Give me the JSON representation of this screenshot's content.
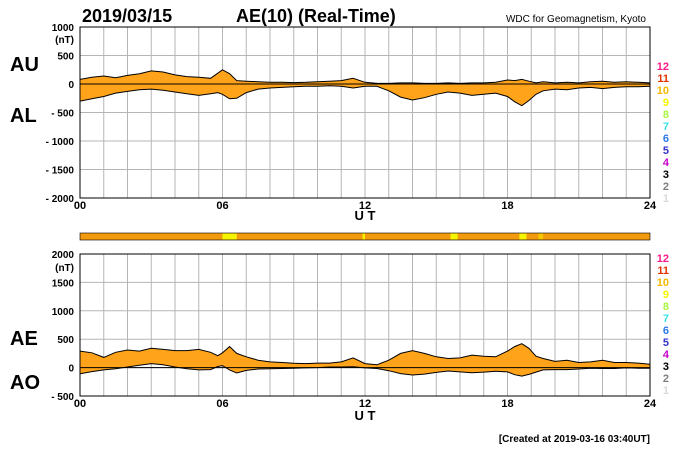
{
  "header": {
    "date": "2019/03/15",
    "title": "AE(10) (Real-Time)",
    "source": "WDC for Geomagnetism, Kyoto"
  },
  "footer": {
    "created": "[Created at 2019-03-16 03:40UT]"
  },
  "colors": {
    "fill": "#ffa31a",
    "band_base": "#f29a0e",
    "station_scale": [
      "#d9d9d9",
      "#7f7f7f",
      "#000000",
      "#cc00cc",
      "#3333cc",
      "#2c78e8",
      "#33e6e6",
      "#a8f542",
      "#f5f500",
      "#f5b800",
      "#e63300",
      "#ff1a8c"
    ]
  },
  "station_labels": [
    "1",
    "2",
    "3",
    "4",
    "5",
    "6",
    "7",
    "8",
    "9",
    "10",
    "11",
    "12"
  ],
  "chart_data": [
    {
      "type": "area",
      "panel": "top",
      "upper_label": "AU",
      "lower_label": "AL",
      "y_unit": "(nT)",
      "ylim": [
        -2000,
        1000
      ],
      "yticks": [
        1000,
        500,
        0,
        -500,
        -1000,
        -1500,
        -2000
      ],
      "ytick_labels": [
        "1000",
        "500",
        "0",
        "- 500",
        "- 1000",
        "- 1500",
        "- 2000"
      ],
      "xlim": [
        0,
        24
      ],
      "xticks": [
        0,
        6,
        12,
        18,
        24
      ],
      "xtick_labels": [
        "00",
        "06",
        "12",
        "18",
        "24"
      ],
      "xlabel": "U T",
      "grid": true,
      "x": [
        0,
        0.5,
        1,
        1.5,
        2,
        2.5,
        3,
        3.5,
        4,
        4.5,
        5,
        5.5,
        5.8,
        6,
        6.3,
        6.6,
        7,
        7.5,
        8,
        8.5,
        9,
        9.5,
        10,
        10.5,
        11,
        11.5,
        12,
        12.5,
        13,
        13.5,
        14,
        14.5,
        15,
        15.5,
        16,
        16.5,
        17,
        17.5,
        18,
        18.3,
        18.6,
        18.9,
        19.2,
        19.5,
        20,
        20.5,
        21,
        21.5,
        22,
        22.5,
        23,
        23.5,
        24
      ],
      "series": [
        {
          "name": "AU",
          "values": [
            80,
            120,
            140,
            110,
            150,
            180,
            230,
            210,
            160,
            130,
            120,
            100,
            190,
            250,
            180,
            60,
            50,
            40,
            30,
            30,
            25,
            30,
            40,
            50,
            60,
            100,
            30,
            10,
            10,
            20,
            20,
            10,
            10,
            20,
            10,
            20,
            20,
            30,
            70,
            60,
            80,
            50,
            20,
            40,
            20,
            30,
            20,
            40,
            50,
            30,
            40,
            30,
            20
          ]
        },
        {
          "name": "AL",
          "values": [
            -300,
            -260,
            -220,
            -160,
            -130,
            -100,
            -90,
            -110,
            -140,
            -170,
            -200,
            -170,
            -150,
            -180,
            -260,
            -250,
            -150,
            -90,
            -70,
            -60,
            -50,
            -40,
            -40,
            -30,
            -40,
            -70,
            -40,
            -40,
            -120,
            -230,
            -280,
            -240,
            -180,
            -140,
            -160,
            -200,
            -180,
            -160,
            -220,
            -310,
            -380,
            -290,
            -180,
            -120,
            -90,
            -100,
            -70,
            -60,
            -80,
            -60,
            -50,
            -50,
            -40
          ]
        }
      ]
    },
    {
      "type": "area",
      "panel": "bottom",
      "upper_label": "AE",
      "lower_label": "AO",
      "y_unit": "(nT)",
      "ylim": [
        -500,
        2000
      ],
      "yticks": [
        2000,
        1500,
        1000,
        500,
        0,
        -500
      ],
      "ytick_labels": [
        "2000",
        "1500",
        "1000",
        "500",
        "0",
        "- 500"
      ],
      "xlim": [
        0,
        24
      ],
      "xticks": [
        0,
        6,
        12,
        18,
        24
      ],
      "xtick_labels": [
        "00",
        "06",
        "12",
        "18",
        "24"
      ],
      "xlabel": "U T",
      "grid": true,
      "x": [
        0,
        0.5,
        1,
        1.5,
        2,
        2.5,
        3,
        3.5,
        4,
        4.5,
        5,
        5.5,
        5.8,
        6,
        6.3,
        6.6,
        7,
        7.5,
        8,
        8.5,
        9,
        9.5,
        10,
        10.5,
        11,
        11.5,
        12,
        12.5,
        13,
        13.5,
        14,
        14.5,
        15,
        15.5,
        16,
        16.5,
        17,
        17.5,
        18,
        18.3,
        18.6,
        18.9,
        19.2,
        19.5,
        20,
        20.5,
        21,
        21.5,
        22,
        22.5,
        23,
        23.5,
        24
      ],
      "series": [
        {
          "name": "AE",
          "values": [
            290,
            260,
            180,
            270,
            310,
            290,
            340,
            320,
            300,
            300,
            320,
            270,
            210,
            260,
            370,
            250,
            190,
            130,
            100,
            90,
            75,
            70,
            80,
            80,
            100,
            170,
            70,
            50,
            130,
            250,
            300,
            250,
            190,
            160,
            170,
            220,
            200,
            190,
            290,
            370,
            420,
            340,
            200,
            160,
            110,
            130,
            90,
            100,
            130,
            90,
            90,
            80,
            60
          ]
        },
        {
          "name": "AO",
          "values": [
            -110,
            -70,
            -40,
            -20,
            10,
            40,
            70,
            50,
            10,
            -20,
            -40,
            -35,
            20,
            35,
            -40,
            -95,
            -50,
            -25,
            -20,
            -15,
            -12,
            -5,
            0,
            10,
            10,
            15,
            -5,
            -15,
            -55,
            -105,
            -130,
            -115,
            -85,
            -60,
            -75,
            -90,
            -80,
            -65,
            -75,
            -125,
            -150,
            -120,
            -80,
            -40,
            -35,
            -35,
            -25,
            -10,
            -15,
            -15,
            -5,
            -10,
            -10
          ]
        }
      ]
    }
  ]
}
